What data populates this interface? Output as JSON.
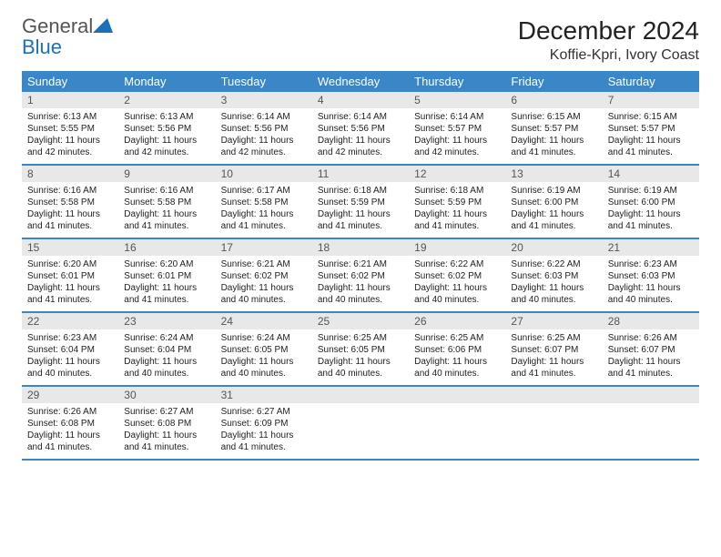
{
  "logo": {
    "text1": "General",
    "text2": "Blue"
  },
  "title": "December 2024",
  "location": "Koffie-Kpri, Ivory Coast",
  "colors": {
    "header_bg": "#3b86c6",
    "header_text": "#ffffff",
    "daynum_bg": "#e8e8e8",
    "daynum_text": "#555555",
    "border": "#3b86c6",
    "body_text": "#222222",
    "logo_gray": "#555555",
    "logo_blue": "#1d6fb8"
  },
  "day_headers": [
    "Sunday",
    "Monday",
    "Tuesday",
    "Wednesday",
    "Thursday",
    "Friday",
    "Saturday"
  ],
  "weeks": [
    [
      {
        "n": "1",
        "sr": "6:13 AM",
        "ss": "5:55 PM",
        "dl": "11 hours and 42 minutes."
      },
      {
        "n": "2",
        "sr": "6:13 AM",
        "ss": "5:56 PM",
        "dl": "11 hours and 42 minutes."
      },
      {
        "n": "3",
        "sr": "6:14 AM",
        "ss": "5:56 PM",
        "dl": "11 hours and 42 minutes."
      },
      {
        "n": "4",
        "sr": "6:14 AM",
        "ss": "5:56 PM",
        "dl": "11 hours and 42 minutes."
      },
      {
        "n": "5",
        "sr": "6:14 AM",
        "ss": "5:57 PM",
        "dl": "11 hours and 42 minutes."
      },
      {
        "n": "6",
        "sr": "6:15 AM",
        "ss": "5:57 PM",
        "dl": "11 hours and 41 minutes."
      },
      {
        "n": "7",
        "sr": "6:15 AM",
        "ss": "5:57 PM",
        "dl": "11 hours and 41 minutes."
      }
    ],
    [
      {
        "n": "8",
        "sr": "6:16 AM",
        "ss": "5:58 PM",
        "dl": "11 hours and 41 minutes."
      },
      {
        "n": "9",
        "sr": "6:16 AM",
        "ss": "5:58 PM",
        "dl": "11 hours and 41 minutes."
      },
      {
        "n": "10",
        "sr": "6:17 AM",
        "ss": "5:58 PM",
        "dl": "11 hours and 41 minutes."
      },
      {
        "n": "11",
        "sr": "6:18 AM",
        "ss": "5:59 PM",
        "dl": "11 hours and 41 minutes."
      },
      {
        "n": "12",
        "sr": "6:18 AM",
        "ss": "5:59 PM",
        "dl": "11 hours and 41 minutes."
      },
      {
        "n": "13",
        "sr": "6:19 AM",
        "ss": "6:00 PM",
        "dl": "11 hours and 41 minutes."
      },
      {
        "n": "14",
        "sr": "6:19 AM",
        "ss": "6:00 PM",
        "dl": "11 hours and 41 minutes."
      }
    ],
    [
      {
        "n": "15",
        "sr": "6:20 AM",
        "ss": "6:01 PM",
        "dl": "11 hours and 41 minutes."
      },
      {
        "n": "16",
        "sr": "6:20 AM",
        "ss": "6:01 PM",
        "dl": "11 hours and 41 minutes."
      },
      {
        "n": "17",
        "sr": "6:21 AM",
        "ss": "6:02 PM",
        "dl": "11 hours and 40 minutes."
      },
      {
        "n": "18",
        "sr": "6:21 AM",
        "ss": "6:02 PM",
        "dl": "11 hours and 40 minutes."
      },
      {
        "n": "19",
        "sr": "6:22 AM",
        "ss": "6:02 PM",
        "dl": "11 hours and 40 minutes."
      },
      {
        "n": "20",
        "sr": "6:22 AM",
        "ss": "6:03 PM",
        "dl": "11 hours and 40 minutes."
      },
      {
        "n": "21",
        "sr": "6:23 AM",
        "ss": "6:03 PM",
        "dl": "11 hours and 40 minutes."
      }
    ],
    [
      {
        "n": "22",
        "sr": "6:23 AM",
        "ss": "6:04 PM",
        "dl": "11 hours and 40 minutes."
      },
      {
        "n": "23",
        "sr": "6:24 AM",
        "ss": "6:04 PM",
        "dl": "11 hours and 40 minutes."
      },
      {
        "n": "24",
        "sr": "6:24 AM",
        "ss": "6:05 PM",
        "dl": "11 hours and 40 minutes."
      },
      {
        "n": "25",
        "sr": "6:25 AM",
        "ss": "6:05 PM",
        "dl": "11 hours and 40 minutes."
      },
      {
        "n": "26",
        "sr": "6:25 AM",
        "ss": "6:06 PM",
        "dl": "11 hours and 40 minutes."
      },
      {
        "n": "27",
        "sr": "6:25 AM",
        "ss": "6:07 PM",
        "dl": "11 hours and 41 minutes."
      },
      {
        "n": "28",
        "sr": "6:26 AM",
        "ss": "6:07 PM",
        "dl": "11 hours and 41 minutes."
      }
    ],
    [
      {
        "n": "29",
        "sr": "6:26 AM",
        "ss": "6:08 PM",
        "dl": "11 hours and 41 minutes."
      },
      {
        "n": "30",
        "sr": "6:27 AM",
        "ss": "6:08 PM",
        "dl": "11 hours and 41 minutes."
      },
      {
        "n": "31",
        "sr": "6:27 AM",
        "ss": "6:09 PM",
        "dl": "11 hours and 41 minutes."
      },
      null,
      null,
      null,
      null
    ]
  ],
  "labels": {
    "sunrise": "Sunrise:",
    "sunset": "Sunset:",
    "daylight": "Daylight:"
  }
}
